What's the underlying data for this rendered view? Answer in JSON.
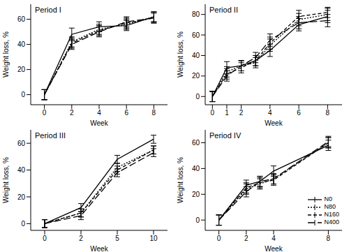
{
  "chart_data": [
    {
      "type": "line",
      "title": "Period I",
      "xlabel": "Week",
      "ylabel": "Weight loss, %",
      "x": [
        0,
        2,
        4,
        6,
        8
      ],
      "xlim": [
        -1,
        9
      ],
      "xticks": [
        0,
        2,
        4,
        6,
        8
      ],
      "ylim": [
        -8,
        72
      ],
      "yticks": [
        0,
        20,
        40,
        60
      ],
      "series": [
        {
          "name": "N0",
          "color": "#000000",
          "line_style": "solid",
          "values": [
            0,
            48,
            54,
            55,
            62
          ],
          "errors": [
            4,
            5,
            4,
            4,
            4
          ]
        },
        {
          "name": "N80",
          "color": "#000000",
          "line_style": "dotted",
          "values": [
            0,
            42,
            52,
            56,
            62
          ],
          "errors": [
            4,
            4,
            4,
            4,
            4
          ]
        },
        {
          "name": "N160",
          "color": "#000000",
          "line_style": "dashed",
          "values": [
            0,
            41,
            51,
            57,
            61
          ],
          "errors": [
            4,
            4,
            4,
            4,
            4
          ]
        },
        {
          "name": "N400",
          "color": "#000000",
          "line_style": "longdash",
          "values": [
            0,
            40,
            50,
            58,
            61
          ],
          "errors": [
            4,
            4,
            4,
            4,
            4
          ]
        }
      ]
    },
    {
      "type": "line",
      "title": "Period II",
      "xlabel": "Week",
      "ylabel": "Weight loss, %",
      "x": [
        0,
        1,
        2,
        3,
        4,
        6,
        8
      ],
      "xlim": [
        -0.5,
        9
      ],
      "xticks": [
        0,
        1,
        2,
        4,
        6,
        8
      ],
      "ylim": [
        -8,
        90
      ],
      "yticks": [
        0,
        20,
        40,
        60,
        80
      ],
      "series": [
        {
          "name": "N0",
          "color": "#000000",
          "line_style": "solid",
          "values": [
            0,
            28,
            30,
            35,
            45,
            70,
            78
          ],
          "errors": [
            5,
            6,
            5,
            5,
            6,
            6,
            6
          ]
        },
        {
          "name": "N80",
          "color": "#000000",
          "line_style": "dotted",
          "values": [
            0,
            24,
            30,
            33,
            50,
            75,
            80
          ],
          "errors": [
            5,
            5,
            5,
            5,
            6,
            6,
            6
          ]
        },
        {
          "name": "N160",
          "color": "#000000",
          "line_style": "dashed",
          "values": [
            0,
            22,
            28,
            35,
            52,
            78,
            82
          ],
          "errors": [
            5,
            5,
            5,
            5,
            6,
            6,
            5
          ]
        },
        {
          "name": "N400",
          "color": "#000000",
          "line_style": "longdash",
          "values": [
            0,
            20,
            30,
            38,
            55,
            72,
            74
          ],
          "errors": [
            5,
            5,
            5,
            5,
            6,
            6,
            6
          ]
        }
      ]
    },
    {
      "type": "line",
      "title": "Period III",
      "xlabel": "Week",
      "ylabel": "Weight loss, %",
      "categories": [
        "0",
        "2",
        "5",
        "10"
      ],
      "ylim": [
        -5,
        70
      ],
      "yticks": [
        0,
        20,
        40,
        60
      ],
      "series": [
        {
          "name": "N0",
          "color": "#000000",
          "line_style": "solid",
          "values": [
            0,
            12,
            48,
            63
          ],
          "errors": [
            3,
            3,
            3,
            3
          ]
        },
        {
          "name": "N80",
          "color": "#000000",
          "line_style": "dotted",
          "values": [
            0,
            8,
            42,
            55
          ],
          "errors": [
            3,
            3,
            3,
            3
          ]
        },
        {
          "name": "N160",
          "color": "#000000",
          "line_style": "dashed",
          "values": [
            0,
            8,
            40,
            55
          ],
          "errors": [
            3,
            3,
            3,
            3
          ]
        },
        {
          "name": "N400",
          "color": "#000000",
          "line_style": "longdash",
          "values": [
            0,
            6,
            38,
            53
          ],
          "errors": [
            3,
            3,
            3,
            3
          ]
        }
      ]
    },
    {
      "type": "line",
      "title": "Period IV",
      "xlabel": "Week",
      "ylabel": "Weight loss, %",
      "legend": "lower right",
      "x": [
        0,
        2,
        3,
        4,
        8
      ],
      "xlim": [
        -1,
        9
      ],
      "xticks": [
        0,
        2,
        4,
        8
      ],
      "ylim": [
        -8,
        70
      ],
      "yticks": [
        0,
        20,
        40,
        60
      ],
      "series": [
        {
          "name": "N0",
          "color": "#000000",
          "line_style": "solid",
          "values": [
            0,
            27,
            30,
            38,
            58
          ],
          "errors": [
            4,
            4,
            4,
            4,
            4
          ]
        },
        {
          "name": "N80",
          "color": "#000000",
          "line_style": "dotted",
          "values": [
            0,
            24,
            28,
            32,
            60
          ],
          "errors": [
            4,
            4,
            4,
            4,
            4
          ]
        },
        {
          "name": "N160",
          "color": "#000000",
          "line_style": "dashed",
          "values": [
            0,
            25,
            29,
            31,
            60
          ],
          "errors": [
            4,
            4,
            4,
            4,
            4
          ]
        },
        {
          "name": "N400",
          "color": "#000000",
          "line_style": "longdash",
          "values": [
            0,
            22,
            30,
            32,
            61
          ],
          "errors": [
            4,
            4,
            4,
            4,
            4
          ]
        }
      ]
    }
  ]
}
